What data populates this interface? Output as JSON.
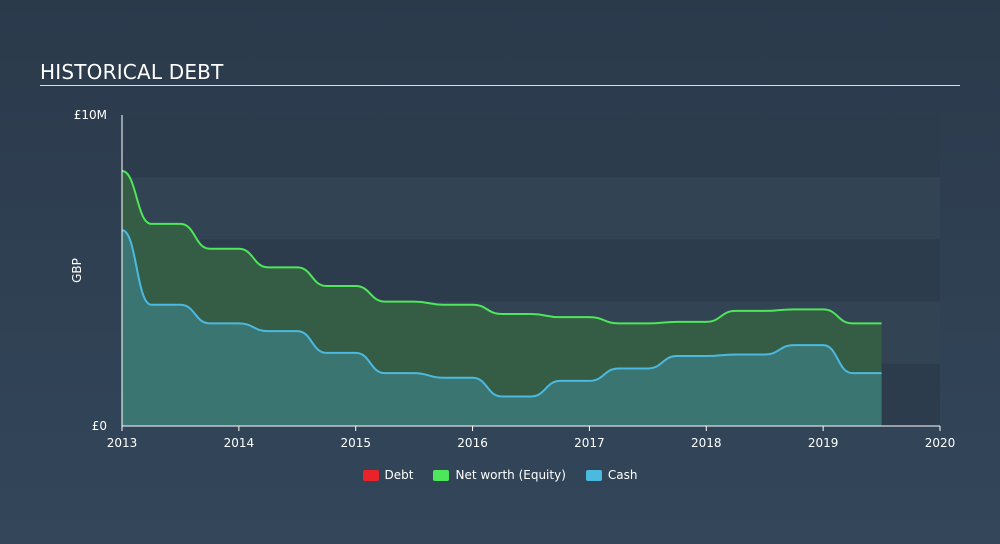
{
  "header": {
    "title": "HISTORICAL DEBT"
  },
  "colors": {
    "debt": "#e8242a",
    "equity": "#4ee65a",
    "cash": "#4bb9e0",
    "equity_fill": "#355d45",
    "cash_fill": "#3b7571",
    "band_dark": "#2d3c4c",
    "band_light": "#324354"
  },
  "chart_data": {
    "type": "area",
    "title": "HISTORICAL DEBT",
    "xlabel": "",
    "ylabel": "GBP",
    "ylim": [
      0,
      10
    ],
    "xlim": [
      2013,
      2020
    ],
    "y_tick_labels": [
      "£0",
      "£10M"
    ],
    "y_ticks": [
      0,
      10
    ],
    "x_tick_labels": [
      "2013",
      "2014",
      "2015",
      "2016",
      "2017",
      "2018",
      "2019",
      "2020"
    ],
    "x_ticks": [
      2013,
      2014,
      2015,
      2016,
      2017,
      2018,
      2019,
      2020
    ],
    "legend_position": "bottom-center",
    "legend": [
      "Debt",
      "Net worth (Equity)",
      "Cash"
    ],
    "series": [
      {
        "name": "Debt",
        "key": "debt",
        "x": [
          2013.0,
          2019.5
        ],
        "y": [
          0,
          0
        ]
      },
      {
        "name": "Net worth (Equity)",
        "key": "equity",
        "x": [
          2013.0,
          2013.25,
          2013.5,
          2013.75,
          2014.0,
          2014.25,
          2014.5,
          2014.75,
          2015.0,
          2015.25,
          2015.5,
          2015.75,
          2016.0,
          2016.25,
          2016.5,
          2016.75,
          2017.0,
          2017.25,
          2017.5,
          2017.75,
          2018.0,
          2018.25,
          2018.5,
          2018.75,
          2019.0,
          2019.25,
          2019.5
        ],
        "y": [
          8.2,
          6.5,
          6.5,
          5.7,
          5.7,
          5.1,
          5.1,
          4.5,
          4.5,
          4.0,
          4.0,
          3.9,
          3.9,
          3.6,
          3.6,
          3.5,
          3.5,
          3.3,
          3.3,
          3.35,
          3.35,
          3.7,
          3.7,
          3.75,
          3.75,
          3.3,
          3.3
        ]
      },
      {
        "name": "Cash",
        "key": "cash",
        "x": [
          2013.0,
          2013.25,
          2013.5,
          2013.75,
          2014.0,
          2014.25,
          2014.5,
          2014.75,
          2015.0,
          2015.25,
          2015.5,
          2015.75,
          2016.0,
          2016.25,
          2016.5,
          2016.75,
          2017.0,
          2017.25,
          2017.5,
          2017.75,
          2018.0,
          2018.25,
          2018.5,
          2018.75,
          2019.0,
          2019.25,
          2019.5
        ],
        "y": [
          6.3,
          3.9,
          3.9,
          3.3,
          3.3,
          3.05,
          3.05,
          2.35,
          2.35,
          1.7,
          1.7,
          1.55,
          1.55,
          0.95,
          0.95,
          1.45,
          1.45,
          1.85,
          1.85,
          2.25,
          2.25,
          2.3,
          2.3,
          2.6,
          2.6,
          1.7,
          1.7
        ]
      }
    ]
  }
}
